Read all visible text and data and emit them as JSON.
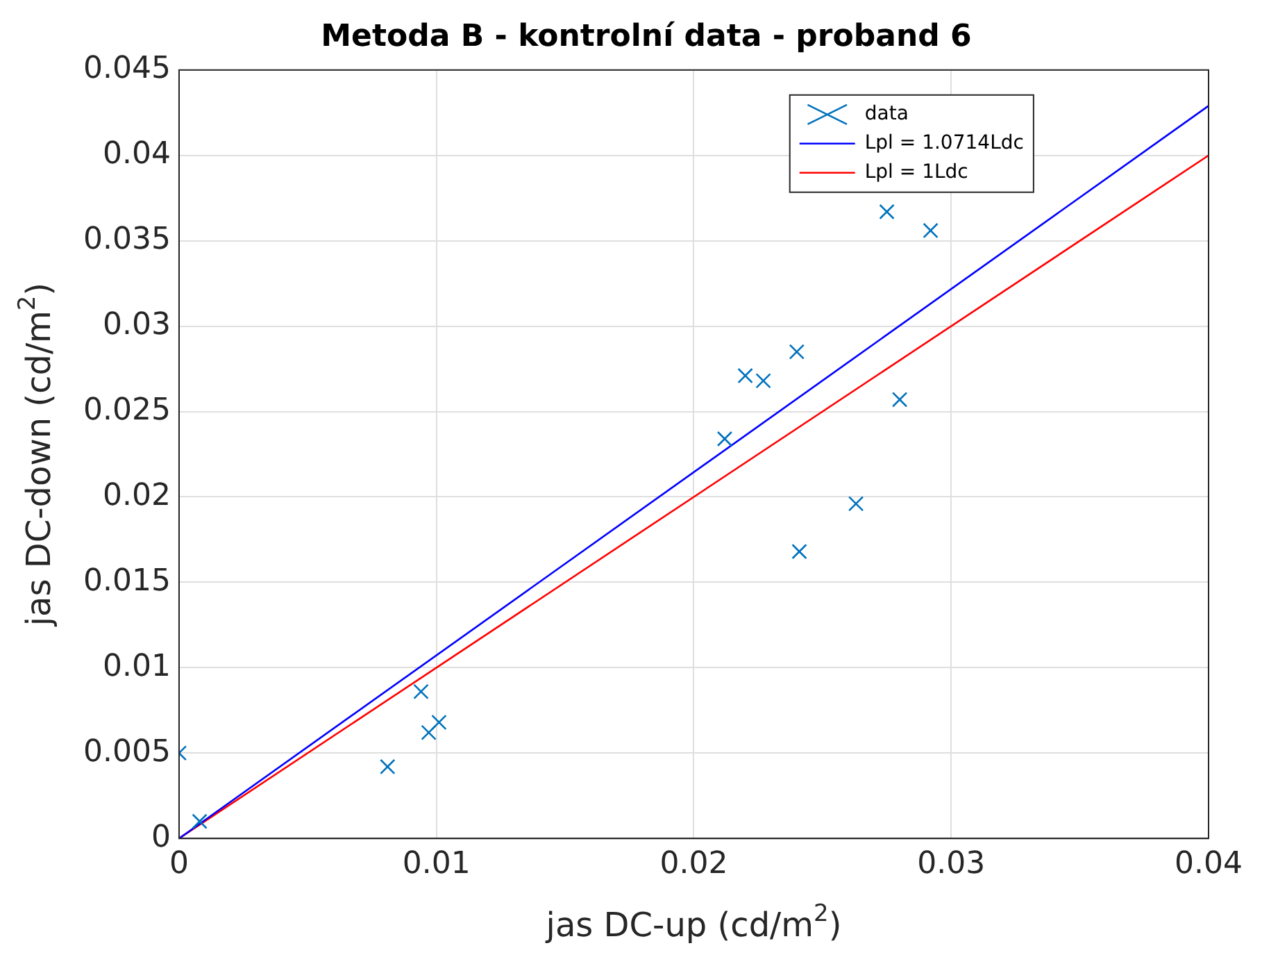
{
  "chart_data": {
    "type": "scatter",
    "title": "Metoda B - kontrolní data - proband 6",
    "xlabel": "jas DC-up (cd/m$^{2}$)",
    "ylabel": "jas DC-down (cd/m$^{2}$)",
    "xlim": [
      0,
      0.04
    ],
    "xticks": [
      0,
      0.01,
      0.02,
      0.03,
      0.04
    ],
    "ylim": [
      0,
      0.045
    ],
    "yticks": [
      0,
      0.005,
      0.01,
      0.015,
      0.02,
      0.025,
      0.03,
      0.035,
      0.04,
      0.045
    ],
    "grid": true,
    "legend": "top right",
    "series": [
      {
        "type": "scatter",
        "name": "data",
        "color": "#0072bd",
        "marker": "cross",
        "x": [
          0,
          0.0008,
          0.0081,
          0.0094,
          0.0097,
          0.0101,
          0.0212,
          0.022,
          0.0227,
          0.024,
          0.0241,
          0.0263,
          0.028,
          0.0275,
          0.0292
        ],
        "values": [
          0.005,
          0.001,
          0.0042,
          0.0086,
          0.0062,
          0.0068,
          0.0234,
          0.0271,
          0.0268,
          0.0285,
          0.0168,
          0.0196,
          0.0257,
          0.0367,
          0.0356
        ]
      },
      {
        "type": "line",
        "name": "Lpl = 1.0714Ldc",
        "color": "#0000ff",
        "line_style": "solid",
        "marker": "none",
        "x": [
          0,
          0.04
        ],
        "values": [
          0,
          0.0429
        ]
      },
      {
        "type": "line",
        "name": "Lpl = 1Ldc",
        "color": "#ff0000",
        "line_style": "solid",
        "marker": "none",
        "x": [
          0,
          0.04
        ],
        "values": [
          0,
          0.04
        ]
      }
    ]
  }
}
